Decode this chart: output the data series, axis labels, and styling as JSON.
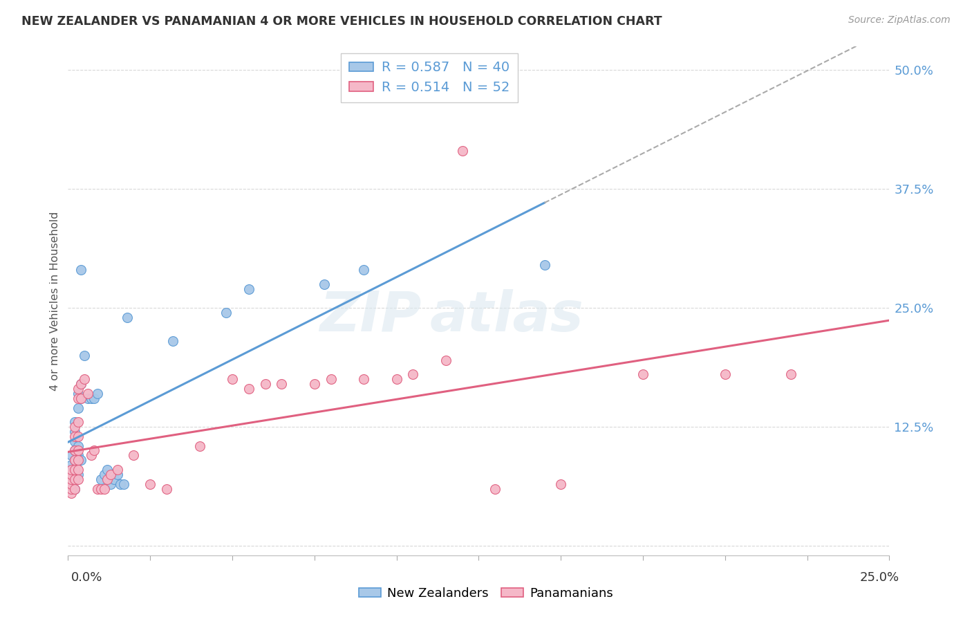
{
  "title": "NEW ZEALANDER VS PANAMANIAN 4 OR MORE VEHICLES IN HOUSEHOLD CORRELATION CHART",
  "source": "Source: ZipAtlas.com",
  "ylabel": "4 or more Vehicles in Household",
  "xlim": [
    0.0,
    0.25
  ],
  "ylim": [
    -0.01,
    0.525
  ],
  "ytick_vals": [
    0.0,
    0.125,
    0.25,
    0.375,
    0.5
  ],
  "ytick_labels": [
    "",
    "12.5%",
    "25.0%",
    "37.5%",
    "50.0%"
  ],
  "xtick_vals": [
    0.0,
    0.025,
    0.05,
    0.075,
    0.1,
    0.125,
    0.15,
    0.175,
    0.2,
    0.225,
    0.25
  ],
  "nz_color_fill": "#a8c8e8",
  "nz_color_edge": "#5b9bd5",
  "pan_color_fill": "#f5b8c8",
  "pan_color_edge": "#e06080",
  "nz_label": "New Zealanders",
  "pan_label": "Panamanians",
  "legend_line1": "R = 0.587   N = 40",
  "legend_line2": "R = 0.514   N = 52",
  "nz_points": [
    [
      0.001,
      0.06
    ],
    [
      0.001,
      0.075
    ],
    [
      0.001,
      0.085
    ],
    [
      0.001,
      0.095
    ],
    [
      0.002,
      0.06
    ],
    [
      0.002,
      0.07
    ],
    [
      0.002,
      0.09
    ],
    [
      0.002,
      0.1
    ],
    [
      0.002,
      0.11
    ],
    [
      0.002,
      0.12
    ],
    [
      0.002,
      0.13
    ],
    [
      0.003,
      0.075
    ],
    [
      0.003,
      0.095
    ],
    [
      0.003,
      0.105
    ],
    [
      0.003,
      0.145
    ],
    [
      0.003,
      0.16
    ],
    [
      0.004,
      0.09
    ],
    [
      0.004,
      0.155
    ],
    [
      0.004,
      0.17
    ],
    [
      0.005,
      0.2
    ],
    [
      0.006,
      0.155
    ],
    [
      0.007,
      0.155
    ],
    [
      0.008,
      0.155
    ],
    [
      0.009,
      0.16
    ],
    [
      0.01,
      0.07
    ],
    [
      0.011,
      0.075
    ],
    [
      0.012,
      0.08
    ],
    [
      0.013,
      0.065
    ],
    [
      0.014,
      0.07
    ],
    [
      0.015,
      0.075
    ],
    [
      0.016,
      0.065
    ],
    [
      0.017,
      0.065
    ],
    [
      0.004,
      0.29
    ],
    [
      0.018,
      0.24
    ],
    [
      0.032,
      0.215
    ],
    [
      0.048,
      0.245
    ],
    [
      0.055,
      0.27
    ],
    [
      0.078,
      0.275
    ],
    [
      0.09,
      0.29
    ],
    [
      0.145,
      0.295
    ]
  ],
  "pan_points": [
    [
      0.001,
      0.055
    ],
    [
      0.001,
      0.06
    ],
    [
      0.001,
      0.065
    ],
    [
      0.001,
      0.07
    ],
    [
      0.001,
      0.075
    ],
    [
      0.001,
      0.08
    ],
    [
      0.002,
      0.06
    ],
    [
      0.002,
      0.07
    ],
    [
      0.002,
      0.08
    ],
    [
      0.002,
      0.09
    ],
    [
      0.002,
      0.1
    ],
    [
      0.002,
      0.115
    ],
    [
      0.002,
      0.125
    ],
    [
      0.003,
      0.07
    ],
    [
      0.003,
      0.08
    ],
    [
      0.003,
      0.09
    ],
    [
      0.003,
      0.1
    ],
    [
      0.003,
      0.115
    ],
    [
      0.003,
      0.13
    ],
    [
      0.003,
      0.155
    ],
    [
      0.003,
      0.165
    ],
    [
      0.004,
      0.155
    ],
    [
      0.004,
      0.17
    ],
    [
      0.005,
      0.175
    ],
    [
      0.006,
      0.16
    ],
    [
      0.007,
      0.095
    ],
    [
      0.008,
      0.1
    ],
    [
      0.009,
      0.06
    ],
    [
      0.01,
      0.06
    ],
    [
      0.011,
      0.06
    ],
    [
      0.012,
      0.07
    ],
    [
      0.013,
      0.075
    ],
    [
      0.015,
      0.08
    ],
    [
      0.02,
      0.095
    ],
    [
      0.025,
      0.065
    ],
    [
      0.03,
      0.06
    ],
    [
      0.04,
      0.105
    ],
    [
      0.05,
      0.175
    ],
    [
      0.055,
      0.165
    ],
    [
      0.06,
      0.17
    ],
    [
      0.065,
      0.17
    ],
    [
      0.075,
      0.17
    ],
    [
      0.08,
      0.175
    ],
    [
      0.09,
      0.175
    ],
    [
      0.1,
      0.175
    ],
    [
      0.105,
      0.18
    ],
    [
      0.115,
      0.195
    ],
    [
      0.13,
      0.06
    ],
    [
      0.15,
      0.065
    ],
    [
      0.175,
      0.18
    ],
    [
      0.2,
      0.18
    ],
    [
      0.22,
      0.18
    ]
  ],
  "pan_outlier": [
    0.12,
    0.415
  ],
  "watermark_top": "ZIP",
  "watermark_bot": "atlas",
  "bg_color": "#ffffff",
  "grid_color": "#d8d8d8",
  "tick_label_color": "#5b9bd5",
  "title_color": "#333333"
}
